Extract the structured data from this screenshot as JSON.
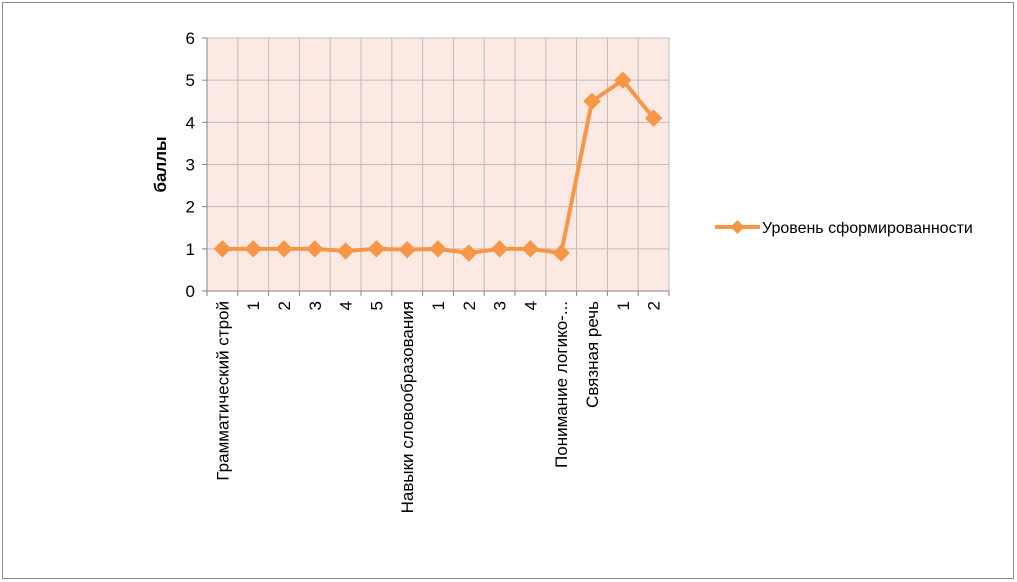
{
  "chart_data": {
    "type": "line",
    "title": "",
    "xlabel": "",
    "ylabel": "баллы",
    "ylim": [
      0,
      6
    ],
    "yticks": [
      0,
      1,
      2,
      3,
      4,
      5,
      6
    ],
    "grid": true,
    "legend_position": "right",
    "plot_background": "#fce9e4",
    "grid_color": "#bdbdbd",
    "categories": [
      "Грамматический строй",
      "1",
      "2",
      "3",
      "4",
      "5",
      "Навыки словообразования",
      "1",
      "2",
      "3",
      "4",
      "Понимание логико-...",
      "Связная речь",
      "1",
      "2"
    ],
    "series": [
      {
        "name": "Уровень сформированности",
        "color": "#f79646",
        "marker": "diamond",
        "values": [
          1.0,
          1.0,
          1.0,
          1.0,
          0.95,
          1.0,
          0.98,
          1.0,
          0.9,
          1.0,
          1.0,
          0.9,
          4.5,
          5.0,
          4.1
        ]
      }
    ]
  }
}
